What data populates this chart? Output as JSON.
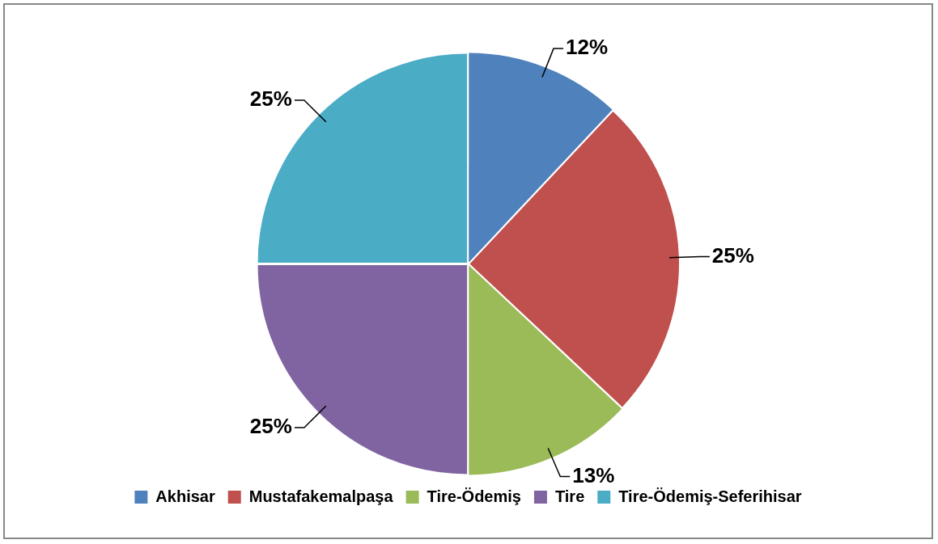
{
  "chart_data": {
    "type": "pie",
    "categories": [
      "Akhisar",
      "Mustafakemalpaşa",
      "Tire-Ödemiş",
      "Tire",
      "Tire-Ödemiş-Seferihisar"
    ],
    "values": [
      12,
      25,
      13,
      25,
      25
    ],
    "colors": [
      "#4f81bd",
      "#c0504d",
      "#9bbb59",
      "#8064a2",
      "#4bacc6"
    ],
    "value_labels": [
      "12%",
      "25%",
      "13%",
      "25%",
      "25%"
    ],
    "legend": "bottom"
  }
}
